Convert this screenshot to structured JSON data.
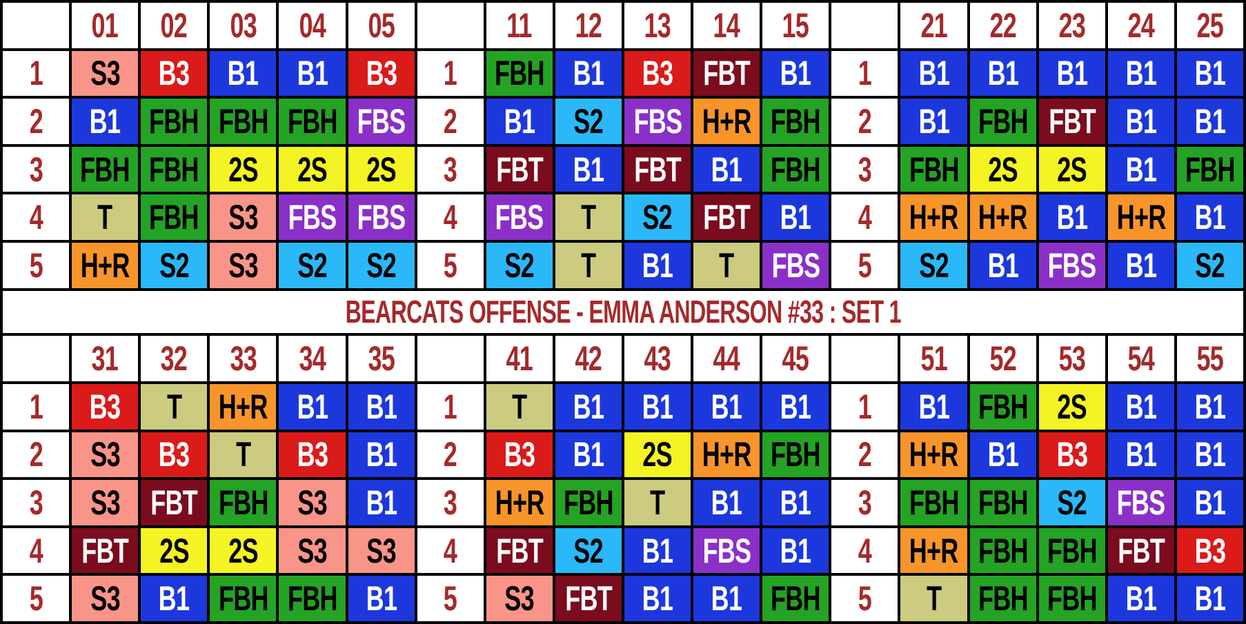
{
  "title": "BEARCATS OFFENSE - EMMA ANDERSON #33 : SET 1",
  "row_labels": [
    "1",
    "2",
    "3",
    "4",
    "5"
  ],
  "codes": {
    "S3": {
      "bg": "#f99488",
      "fg": "#000000"
    },
    "B3": {
      "bg": "#db1a1a",
      "fg": "#ffffff"
    },
    "B1": {
      "bg": "#1c38dd",
      "fg": "#ffffff"
    },
    "FBH": {
      "bg": "#24a324",
      "fg": "#000000"
    },
    "FBS": {
      "bg": "#8a30c8",
      "fg": "#ffffff"
    },
    "2S": {
      "bg": "#f4f424",
      "fg": "#000000"
    },
    "T": {
      "bg": "#cccb80",
      "fg": "#000000"
    },
    "H+R": {
      "bg": "#f8952a",
      "fg": "#000000"
    },
    "S2": {
      "bg": "#2ab8f8",
      "fg": "#000000"
    },
    "FBT": {
      "bg": "#7a0c1e",
      "fg": "#ffffff"
    }
  },
  "grids": [
    [
      {
        "columns": [
          "01",
          "02",
          "03",
          "04",
          "05"
        ],
        "rows": [
          [
            "S3",
            "B3",
            "B1",
            "B1",
            "B3"
          ],
          [
            "B1",
            "FBH",
            "FBH",
            "FBH",
            "FBS"
          ],
          [
            "FBH",
            "FBH",
            "2S",
            "2S",
            "2S"
          ],
          [
            "T",
            "FBH",
            "S3",
            "FBS",
            "FBS"
          ],
          [
            "H+R",
            "S2",
            "S3",
            "S2",
            "S2"
          ]
        ]
      },
      {
        "columns": [
          "11",
          "12",
          "13",
          "14",
          "15"
        ],
        "rows": [
          [
            "FBH",
            "B1",
            "B3",
            "FBT",
            "B1"
          ],
          [
            "B1",
            "S2",
            "FBS",
            "H+R",
            "FBH"
          ],
          [
            "FBT",
            "B1",
            "FBT",
            "B1",
            "FBH"
          ],
          [
            "FBS",
            "T",
            "S2",
            "FBT",
            "B1"
          ],
          [
            "S2",
            "T",
            "B1",
            "T",
            "FBS"
          ]
        ]
      },
      {
        "columns": [
          "21",
          "22",
          "23",
          "24",
          "25"
        ],
        "rows": [
          [
            "B1",
            "B1",
            "B1",
            "B1",
            "B1"
          ],
          [
            "B1",
            "FBH",
            "FBT",
            "B1",
            "B1"
          ],
          [
            "FBH",
            "2S",
            "2S",
            "B1",
            "FBH"
          ],
          [
            "H+R",
            "H+R",
            "B1",
            "H+R",
            "B1"
          ],
          [
            "S2",
            "B1",
            "FBS",
            "B1",
            "S2"
          ]
        ]
      }
    ],
    [
      {
        "columns": [
          "31",
          "32",
          "33",
          "34",
          "35"
        ],
        "rows": [
          [
            "B3",
            "T",
            "H+R",
            "B1",
            "B1"
          ],
          [
            "S3",
            "B3",
            "T",
            "B3",
            "B1"
          ],
          [
            "S3",
            "FBT",
            "FBH",
            "S3",
            "B1"
          ],
          [
            "FBT",
            "2S",
            "2S",
            "S3",
            "S3"
          ],
          [
            "S3",
            "B1",
            "FBH",
            "FBH",
            "B1"
          ]
        ]
      },
      {
        "columns": [
          "41",
          "42",
          "43",
          "44",
          "45"
        ],
        "rows": [
          [
            "T",
            "B1",
            "B1",
            "B1",
            "B1"
          ],
          [
            "B3",
            "B1",
            "2S",
            "H+R",
            "FBH"
          ],
          [
            "H+R",
            "FBH",
            "T",
            "B1",
            "B1"
          ],
          [
            "FBT",
            "S2",
            "B1",
            "FBS",
            "B1"
          ],
          [
            "S3",
            "FBT",
            "B1",
            "B1",
            "FBH"
          ]
        ]
      },
      {
        "columns": [
          "51",
          "52",
          "53",
          "54",
          "55"
        ],
        "rows": [
          [
            "B1",
            "FBH",
            "2S",
            "B1",
            "B1"
          ],
          [
            "H+R",
            "B1",
            "B3",
            "B1",
            "B1"
          ],
          [
            "FBH",
            "FBH",
            "S2",
            "FBS",
            "B1"
          ],
          [
            "H+R",
            "FBH",
            "FBH",
            "FBT",
            "B3"
          ],
          [
            "T",
            "FBH",
            "FBH",
            "B1",
            "B1"
          ]
        ]
      }
    ]
  ]
}
